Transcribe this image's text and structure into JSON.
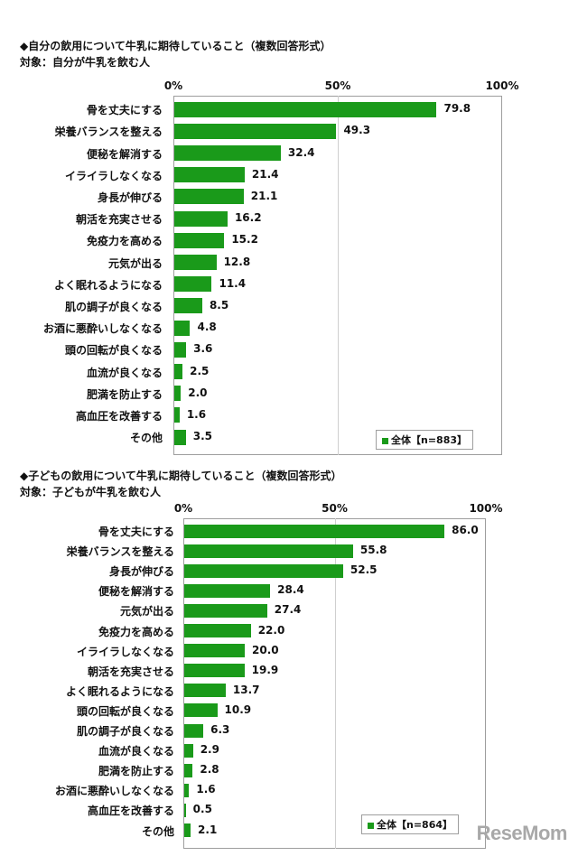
{
  "watermark": "ReseMom",
  "chart_data": [
    {
      "type": "bar",
      "orientation": "horizontal",
      "title": "◆自分の飲用について牛乳に期待していること（複数回答形式）",
      "subtitle": "対象：自分が牛乳を飲む人",
      "xlim": [
        0,
        100
      ],
      "xticks": [
        "0%",
        "50%",
        "100%"
      ],
      "legend": "全体【n=883】",
      "legend_position": "bottom-right",
      "color": "#1a9a1a",
      "categories": [
        "骨を丈夫にする",
        "栄養バランスを整える",
        "便秘を解消する",
        "イライラしなくなる",
        "身長が伸びる",
        "朝活を充実させる",
        "免疫力を高める",
        "元気が出る",
        "よく眠れるようになる",
        "肌の調子が良くなる",
        "お酒に悪酔いしなくなる",
        "頭の回転が良くなる",
        "血流が良くなる",
        "肥満を防止する",
        "高血圧を改善する",
        "その他"
      ],
      "values": [
        79.8,
        49.3,
        32.4,
        21.4,
        21.1,
        16.2,
        15.2,
        12.8,
        11.4,
        8.5,
        4.8,
        3.6,
        2.5,
        2.0,
        1.6,
        3.5
      ],
      "value_labels": [
        "79.8",
        "49.3",
        "32.4",
        "21.4",
        "21.1",
        "16.2",
        "15.2",
        "12.8",
        "11.4",
        "8.5",
        "4.8",
        "3.6",
        "2.5",
        "2.0",
        "1.6",
        "3.5"
      ]
    },
    {
      "type": "bar",
      "orientation": "horizontal",
      "title": "◆子どもの飲用について牛乳に期待していること（複数回答形式）",
      "subtitle": "対象：子どもが牛乳を飲む人",
      "xlim": [
        0,
        100
      ],
      "xticks": [
        "0%",
        "50%",
        "100%"
      ],
      "legend": "全体【n=864】",
      "legend_position": "bottom-right",
      "color": "#1a9a1a",
      "categories": [
        "骨を丈夫にする",
        "栄養バランスを整える",
        "身長が伸びる",
        "便秘を解消する",
        "元気が出る",
        "免疫力を高める",
        "イライラしなくなる",
        "朝活を充実させる",
        "よく眠れるようになる",
        "頭の回転が良くなる",
        "肌の調子が良くなる",
        "血流が良くなる",
        "肥満を防止する",
        "お酒に悪酔いしなくなる",
        "高血圧を改善する",
        "その他"
      ],
      "values": [
        86.0,
        55.8,
        52.5,
        28.4,
        27.4,
        22.0,
        20.0,
        19.9,
        13.7,
        10.9,
        6.3,
        2.9,
        2.8,
        1.6,
        0.5,
        2.1
      ],
      "value_labels": [
        "86.0",
        "55.8",
        "52.5",
        "28.4",
        "27.4",
        "22.0",
        "20.0",
        "19.9",
        "13.7",
        "10.9",
        "6.3",
        "2.9",
        "2.8",
        "1.6",
        "0.5",
        "2.1"
      ]
    }
  ]
}
